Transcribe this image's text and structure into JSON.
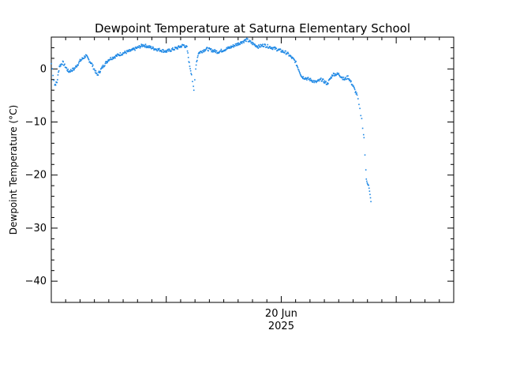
{
  "chart_data": {
    "type": "scatter",
    "title": "Dewpoint Temperature at Saturna Elementary School",
    "ylabel": "Dewpoint Temperature (°C)",
    "xlabel": "",
    "x_tick_labels": [
      {
        "line1": "20 Jun",
        "line2": "2025",
        "day_offset": 0
      }
    ],
    "x_range_days": [
      -2.0,
      1.5
    ],
    "ylim": [
      -44,
      6
    ],
    "y_ticks": [
      0,
      -10,
      -20,
      -30,
      -40
    ],
    "grid": false,
    "marker_color": "#1e88e5",
    "series": [
      {
        "keypoints_day_temp": [
          [
            -2.0,
            1.0
          ],
          [
            -1.97,
            -3.0
          ],
          [
            -1.95,
            -2.5
          ],
          [
            -1.93,
            0.5
          ],
          [
            -1.9,
            1.2
          ],
          [
            -1.85,
            -0.5
          ],
          [
            -1.8,
            0.0
          ],
          [
            -1.75,
            1.5
          ],
          [
            -1.7,
            2.5
          ],
          [
            -1.65,
            1.0
          ],
          [
            -1.6,
            -1.2
          ],
          [
            -1.55,
            0.5
          ],
          [
            -1.5,
            1.8
          ],
          [
            -1.4,
            2.8
          ],
          [
            -1.3,
            3.5
          ],
          [
            -1.2,
            4.5
          ],
          [
            -1.1,
            3.8
          ],
          [
            -1.0,
            3.3
          ],
          [
            -0.9,
            4.0
          ],
          [
            -0.85,
            4.5
          ],
          [
            -0.82,
            4.0
          ],
          [
            -0.8,
            1.0
          ],
          [
            -0.78,
            -1.0
          ],
          [
            -0.76,
            -4.2
          ],
          [
            -0.74,
            1.0
          ],
          [
            -0.72,
            3.0
          ],
          [
            -0.65,
            3.8
          ],
          [
            -0.55,
            3.2
          ],
          [
            -0.45,
            4.0
          ],
          [
            -0.35,
            5.0
          ],
          [
            -0.3,
            5.5
          ],
          [
            -0.25,
            4.8
          ],
          [
            -0.2,
            4.2
          ],
          [
            -0.15,
            4.5
          ],
          [
            -0.05,
            3.8
          ],
          [
            0.05,
            3.0
          ],
          [
            0.12,
            1.5
          ],
          [
            0.18,
            -1.5
          ],
          [
            0.25,
            -2.0
          ],
          [
            0.3,
            -2.5
          ],
          [
            0.35,
            -2.0
          ],
          [
            0.4,
            -2.8
          ],
          [
            0.45,
            -1.0
          ],
          [
            0.5,
            -1.0
          ],
          [
            0.55,
            -2.0
          ],
          [
            0.58,
            -1.5
          ],
          [
            0.62,
            -3.0
          ],
          [
            0.66,
            -5.0
          ],
          [
            0.7,
            -9.5
          ],
          [
            0.72,
            -13.0
          ],
          [
            0.74,
            -20.8
          ],
          [
            0.76,
            -22.0
          ],
          [
            0.78,
            -25.0
          ]
        ]
      }
    ]
  }
}
